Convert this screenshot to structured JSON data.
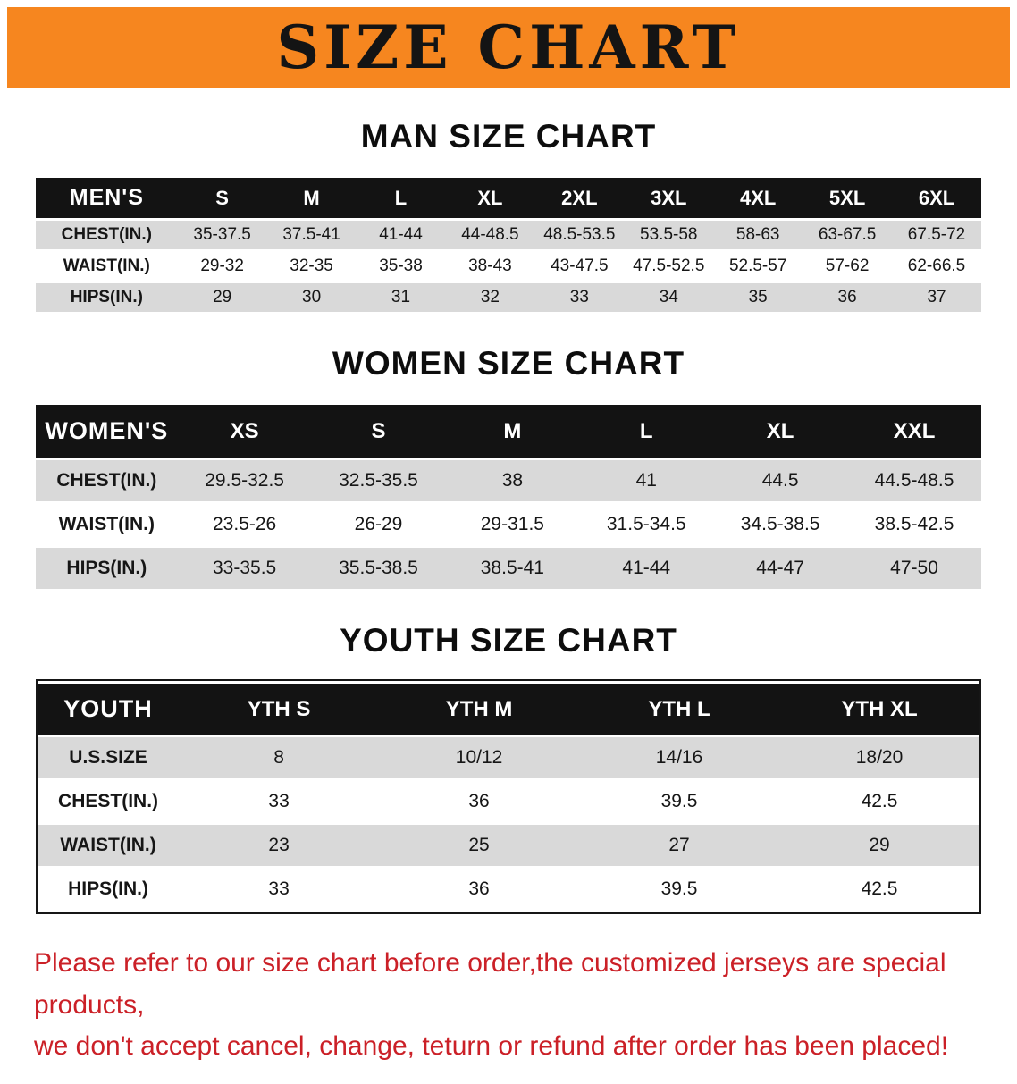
{
  "banner": {
    "title": "SIZE CHART"
  },
  "colors": {
    "banner-bg": "#f6861f",
    "header-bg": "#131313",
    "row-gray": "#d9d9d9",
    "note-red": "#cb2027"
  },
  "sections": [
    {
      "heading": "MAN SIZE CHART",
      "table": {
        "header": [
          "MEN'S",
          "S",
          "M",
          "L",
          "XL",
          "2XL",
          "3XL",
          "4XL",
          "5XL",
          "6XL"
        ],
        "rows": [
          [
            "CHEST(IN.)",
            "35-37.5",
            "37.5-41",
            "41-44",
            "44-48.5",
            "48.5-53.5",
            "53.5-58",
            "58-63",
            "63-67.5",
            "67.5-72"
          ],
          [
            "WAIST(IN.)",
            "29-32",
            "32-35",
            "35-38",
            "38-43",
            "43-47.5",
            "47.5-52.5",
            "52.5-57",
            "57-62",
            "62-66.5"
          ],
          [
            "HIPS(IN.)",
            "29",
            "30",
            "31",
            "32",
            "33",
            "34",
            "35",
            "36",
            "37"
          ]
        ]
      }
    },
    {
      "heading": "WOMEN SIZE CHART",
      "table": {
        "header": [
          "WOMEN'S",
          "XS",
          "S",
          "M",
          "L",
          "XL",
          "XXL"
        ],
        "rows": [
          [
            "CHEST(IN.)",
            "29.5-32.5",
            "32.5-35.5",
            "38",
            "41",
            "44.5",
            "44.5-48.5"
          ],
          [
            "WAIST(IN.)",
            "23.5-26",
            "26-29",
            "29-31.5",
            "31.5-34.5",
            "34.5-38.5",
            "38.5-42.5"
          ],
          [
            "HIPS(IN.)",
            "33-35.5",
            "35.5-38.5",
            "38.5-41",
            "41-44",
            "44-47",
            "47-50"
          ]
        ]
      }
    },
    {
      "heading": "YOUTH SIZE CHART",
      "table": {
        "header": [
          "YOUTH",
          "YTH S",
          "YTH M",
          "YTH L",
          "YTH XL"
        ],
        "rows": [
          [
            "U.S.SIZE",
            "8",
            "10/12",
            "14/16",
            "18/20"
          ],
          [
            "CHEST(IN.)",
            "33",
            "36",
            "39.5",
            "42.5"
          ],
          [
            "WAIST(IN.)",
            "23",
            "25",
            "27",
            "29"
          ],
          [
            "HIPS(IN.)",
            "33",
            "36",
            "39.5",
            "42.5"
          ]
        ]
      }
    }
  ],
  "note": {
    "line1": "Please refer to our size chart before order,the customized jerseys are special products,",
    "line2": "we don't accept cancel, change, teturn or refund after order has been placed!"
  }
}
